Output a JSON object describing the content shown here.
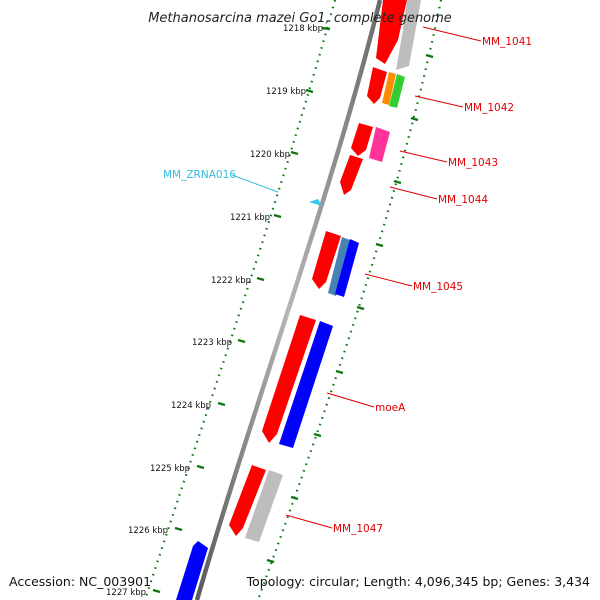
{
  "title": "Methanosarcina mazei Go1, complete genome",
  "footer": {
    "accession": "Accession: NC_003901",
    "summary": "Topology: circular; Length: 4,096,345 bp; Genes: 3,434"
  },
  "colors": {
    "forward": "#ff0000",
    "reverse_blue": "#0000ff",
    "steel_blue": "#4682b4",
    "gray": "#bdbdbd",
    "orange": "#ff8c00",
    "green": "#33cc33",
    "magenta": "#ff3399",
    "rna": "#33ccee",
    "label_red": "#e00000",
    "label_rna": "#33bbdd",
    "tick_green": "#117711",
    "backbone": "#888888"
  },
  "ticks": [
    {
      "label": "1218 kbp",
      "faded": true
    },
    {
      "label": "1219 kbp"
    },
    {
      "label": "1220 kbp"
    },
    {
      "label": "1221 kbp"
    },
    {
      "label": "1222 kbp"
    },
    {
      "label": "1223 kbp"
    },
    {
      "label": "1224 kbp"
    },
    {
      "label": "1225 kbp"
    },
    {
      "label": "1226 kbp"
    },
    {
      "label": "1227 kbp",
      "faded": true
    }
  ],
  "gene_labels": [
    {
      "id": "MM_1041",
      "text": "MM_1041",
      "color": "#e00000"
    },
    {
      "id": "MM_1042",
      "text": "MM_1042",
      "color": "#e00000"
    },
    {
      "id": "MM_1043",
      "text": "MM_1043",
      "color": "#e00000"
    },
    {
      "id": "MM_1044",
      "text": "MM_1044",
      "color": "#e00000"
    },
    {
      "id": "MM_1045",
      "text": "MM_1045",
      "color": "#e00000"
    },
    {
      "id": "moeA",
      "text": "moeA",
      "color": "#e00000"
    },
    {
      "id": "MM_1047",
      "text": "MM_1047",
      "color": "#e00000"
    },
    {
      "id": "MM_ZRNA016",
      "text": "MM_ZRNA016",
      "color": "#33bbdd"
    }
  ],
  "features": [
    {
      "name": "forward-cds-1041",
      "strand": "forward",
      "color": "forward"
    },
    {
      "name": "reverse-cds-1041",
      "strand": "reverse",
      "color": "gray"
    },
    {
      "name": "forward-cds-1042",
      "strand": "forward",
      "color": "forward"
    },
    {
      "name": "reverse-cds-orange",
      "strand": "reverse",
      "color": "orange"
    },
    {
      "name": "reverse-cds-green",
      "strand": "reverse",
      "color": "green"
    },
    {
      "name": "forward-cds-1043",
      "strand": "forward",
      "color": "forward"
    },
    {
      "name": "reverse-cds-magenta",
      "strand": "reverse",
      "color": "magenta"
    },
    {
      "name": "forward-cds-1044",
      "strand": "forward",
      "color": "forward"
    },
    {
      "name": "forward-cds-1045",
      "strand": "forward",
      "color": "forward"
    },
    {
      "name": "reverse-cds-steelblue",
      "strand": "reverse",
      "color": "steel_blue"
    },
    {
      "name": "reverse-cds-1045",
      "strand": "reverse",
      "color": "reverse_blue"
    },
    {
      "name": "forward-cds-1046",
      "strand": "forward",
      "color": "forward"
    },
    {
      "name": "reverse-cds-moeA",
      "strand": "reverse",
      "color": "reverse_blue"
    },
    {
      "name": "forward-cds-1047",
      "strand": "forward",
      "color": "forward"
    },
    {
      "name": "reverse-cds-1047",
      "strand": "reverse",
      "color": "gray"
    },
    {
      "name": "forward-cds-1048",
      "strand": "forward",
      "color": "reverse_blue"
    },
    {
      "name": "rna-feature-zrna016",
      "strand": "forward",
      "color": "rna"
    }
  ]
}
